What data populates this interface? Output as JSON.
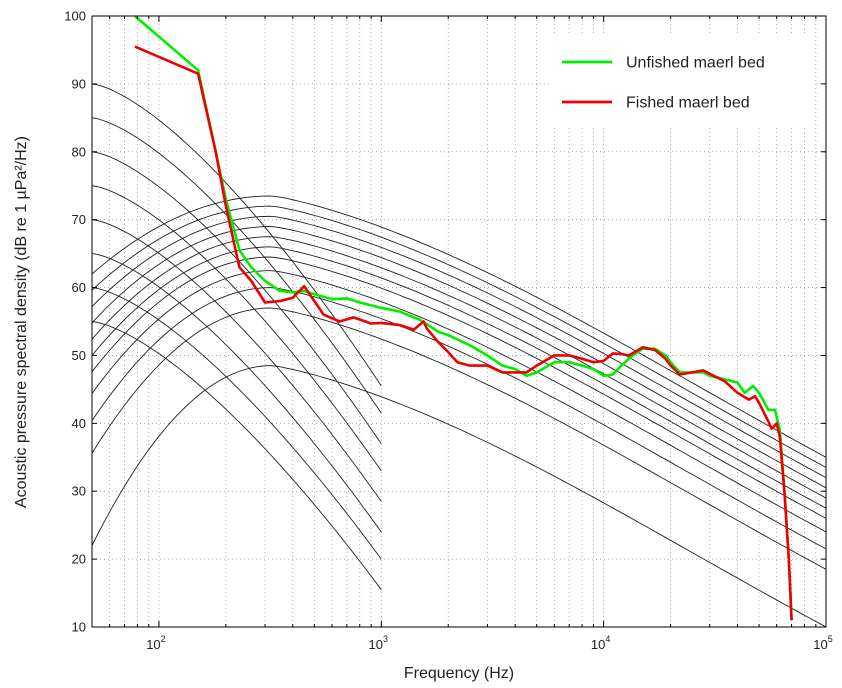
{
  "chart_data": {
    "type": "line",
    "title": "",
    "xlabel": "Frequency (Hz)",
    "ylabel": "Acoustic pressure spectral density (dB re 1 µPa²/Hz)",
    "xscale": "log",
    "xlim": [
      50,
      100000
    ],
    "ylim": [
      10,
      100
    ],
    "grid": "dotted",
    "legend_position": "top-right",
    "x_ticks": [
      {
        "base": "10",
        "exp": "2",
        "value": 100
      },
      {
        "base": "10",
        "exp": "3",
        "value": 1000
      },
      {
        "base": "10",
        "exp": "4",
        "value": 10000
      },
      {
        "base": "10",
        "exp": "5",
        "value": 100000
      }
    ],
    "y_ticks": [
      10,
      20,
      30,
      40,
      50,
      60,
      70,
      80,
      90,
      100
    ],
    "series": [
      {
        "name": "Unfished maerl bed",
        "color": "#00ee00",
        "points": [
          [
            78,
            100
          ],
          [
            150,
            92
          ],
          [
            180,
            80
          ],
          [
            200,
            73
          ],
          [
            230,
            65.5
          ],
          [
            260,
            63
          ],
          [
            300,
            61
          ],
          [
            350,
            59.5
          ],
          [
            400,
            59.3
          ],
          [
            450,
            59.5
          ],
          [
            500,
            59
          ],
          [
            600,
            58.3
          ],
          [
            700,
            58.4
          ],
          [
            800,
            57.8
          ],
          [
            1000,
            57
          ],
          [
            1200,
            56.5
          ],
          [
            1500,
            55.2
          ],
          [
            1800,
            53.5
          ],
          [
            2000,
            53
          ],
          [
            2500,
            51.5
          ],
          [
            3000,
            50
          ],
          [
            3500,
            48.5
          ],
          [
            4000,
            48
          ],
          [
            4500,
            47
          ],
          [
            5000,
            47.5
          ],
          [
            6000,
            49
          ],
          [
            7000,
            49
          ],
          [
            8000,
            48.5
          ],
          [
            9000,
            48
          ],
          [
            10000,
            47
          ],
          [
            11000,
            47.2
          ],
          [
            12000,
            48.5
          ],
          [
            13500,
            50
          ],
          [
            15000,
            51
          ],
          [
            17000,
            51
          ],
          [
            19000,
            50
          ],
          [
            20000,
            49
          ],
          [
            22000,
            47.5
          ],
          [
            25000,
            47.5
          ],
          [
            28000,
            47.5
          ],
          [
            30000,
            47
          ],
          [
            35000,
            46.5
          ],
          [
            40000,
            46
          ],
          [
            43000,
            44.5
          ],
          [
            47000,
            45.5
          ],
          [
            50000,
            44.5
          ],
          [
            55000,
            42
          ],
          [
            59000,
            42
          ],
          [
            62000,
            39
          ],
          [
            65000,
            30
          ],
          [
            68000,
            20
          ],
          [
            70000,
            11
          ]
        ]
      },
      {
        "name": "Fished maerl bed",
        "color": "#ee0000",
        "points": [
          [
            78,
            95.5
          ],
          [
            150,
            91.5
          ],
          [
            180,
            80
          ],
          [
            200,
            72
          ],
          [
            230,
            63
          ],
          [
            260,
            61
          ],
          [
            300,
            57.8
          ],
          [
            350,
            58
          ],
          [
            400,
            58.5
          ],
          [
            450,
            60.2
          ],
          [
            500,
            58
          ],
          [
            550,
            56
          ],
          [
            650,
            55
          ],
          [
            750,
            55.6
          ],
          [
            900,
            54.7
          ],
          [
            1000,
            54.8
          ],
          [
            1200,
            54.5
          ],
          [
            1400,
            53.8
          ],
          [
            1550,
            55
          ],
          [
            1600,
            54
          ],
          [
            1800,
            52
          ],
          [
            2000,
            50.5
          ],
          [
            2200,
            49
          ],
          [
            2500,
            48.5
          ],
          [
            3000,
            48.5
          ],
          [
            3500,
            47.5
          ],
          [
            4000,
            47.5
          ],
          [
            4500,
            47.5
          ],
          [
            5000,
            48.5
          ],
          [
            6000,
            50
          ],
          [
            7000,
            50
          ],
          [
            8000,
            49.5
          ],
          [
            9000,
            49
          ],
          [
            10000,
            49.2
          ],
          [
            11000,
            50.3
          ],
          [
            12000,
            50.2
          ],
          [
            13000,
            50
          ],
          [
            15000,
            51.2
          ],
          [
            17000,
            50.8
          ],
          [
            19000,
            49.5
          ],
          [
            20000,
            48.5
          ],
          [
            22000,
            47.2
          ],
          [
            25000,
            47.5
          ],
          [
            28000,
            47.8
          ],
          [
            30000,
            47.3
          ],
          [
            35000,
            46.2
          ],
          [
            40000,
            44.5
          ],
          [
            45000,
            43.5
          ],
          [
            48000,
            44
          ],
          [
            50000,
            43
          ],
          [
            55000,
            40.3
          ],
          [
            57000,
            39.2
          ],
          [
            60000,
            40
          ],
          [
            62000,
            38
          ],
          [
            65000,
            30
          ],
          [
            68000,
            20
          ],
          [
            70000,
            11
          ]
        ]
      }
    ],
    "reference_curves": {
      "color": "#222222",
      "decaying_low_frequency": [
        {
          "start_level": 90,
          "end_level": 45.5
        },
        {
          "start_level": 85,
          "end_level": 41.5
        },
        {
          "start_level": 80,
          "end_level": 37
        },
        {
          "start_level": 75,
          "end_level": 33
        },
        {
          "start_level": 70,
          "end_level": 28.5
        },
        {
          "start_level": 65,
          "end_level": 24
        },
        {
          "start_level": 60,
          "end_level": 20
        },
        {
          "start_level": 55,
          "end_level": 15.5
        }
      ],
      "humped_broadband": [
        {
          "peak_level": 73.5,
          "end_level": 35
        },
        {
          "peak_level": 72.0,
          "end_level": 33.5
        },
        {
          "peak_level": 70.5,
          "end_level": 32
        },
        {
          "peak_level": 69.0,
          "end_level": 30.5
        },
        {
          "peak_level": 67.5,
          "end_level": 29
        },
        {
          "peak_level": 66.0,
          "end_level": 27.5
        },
        {
          "peak_level": 64.5,
          "end_level": 26
        },
        {
          "peak_level": 62.5,
          "end_level": 24
        },
        {
          "peak_level": 60.0,
          "end_level": 21.5
        },
        {
          "peak_level": 57.0,
          "end_level": 18.5
        },
        {
          "peak_level": 48.5,
          "end_level": 10
        }
      ]
    }
  }
}
